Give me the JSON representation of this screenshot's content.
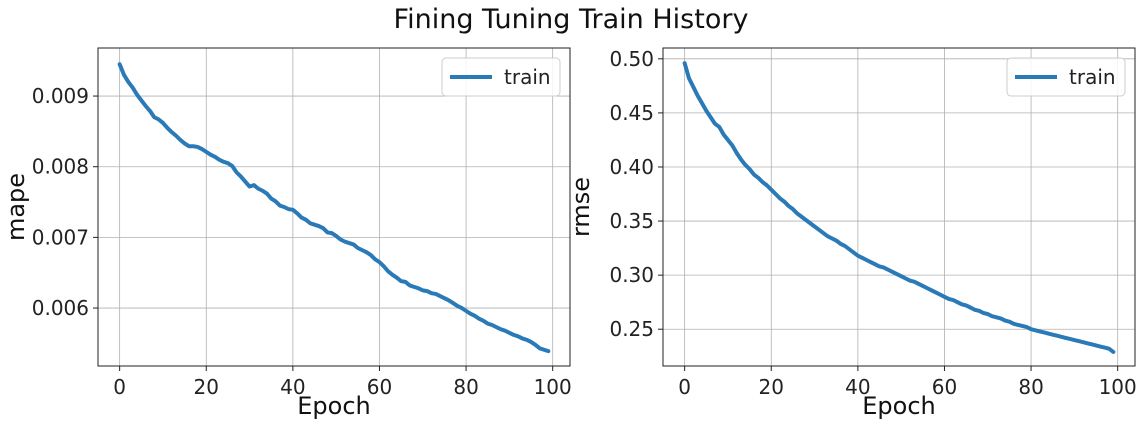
{
  "figure_title": "Fining Tuning Train History",
  "colors": {
    "line": "#2a7ab8",
    "grid": "#b0b0b0",
    "axes": "#222222"
  },
  "chart_data": [
    {
      "type": "line",
      "xlabel": "Epoch",
      "ylabel": "mape",
      "xlim": [
        -5,
        104
      ],
      "ylim": [
        0.00518,
        0.00968
      ],
      "xticks": [
        0,
        20,
        40,
        60,
        80,
        100
      ],
      "xtick_labels": [
        "0",
        "20",
        "40",
        "60",
        "80",
        "100"
      ],
      "yticks": [
        0.006,
        0.007,
        0.008,
        0.009
      ],
      "ytick_labels": [
        "0.006",
        "0.007",
        "0.008",
        "0.009"
      ],
      "grid": true,
      "legend_position": "top-right",
      "series": [
        {
          "name": "train",
          "x": [
            0,
            1,
            2,
            3,
            4,
            5,
            6,
            7,
            8,
            9,
            10,
            11,
            12,
            13,
            14,
            15,
            16,
            17,
            18,
            19,
            20,
            21,
            22,
            23,
            24,
            25,
            26,
            27,
            28,
            29,
            30,
            31,
            32,
            33,
            34,
            35,
            36,
            37,
            38,
            39,
            40,
            41,
            42,
            43,
            44,
            45,
            46,
            47,
            48,
            49,
            50,
            51,
            52,
            53,
            54,
            55,
            56,
            57,
            58,
            59,
            60,
            61,
            62,
            63,
            64,
            65,
            66,
            67,
            68,
            69,
            70,
            71,
            72,
            73,
            74,
            75,
            76,
            77,
            78,
            79,
            80,
            81,
            82,
            83,
            84,
            85,
            86,
            87,
            88,
            89,
            90,
            91,
            92,
            93,
            94,
            95,
            96,
            97,
            98,
            99
          ],
          "values": [
            0.00945,
            0.0093,
            0.0092,
            0.00912,
            0.00902,
            0.00894,
            0.00886,
            0.00879,
            0.0087,
            0.00867,
            0.00862,
            0.00855,
            0.00849,
            0.00844,
            0.00838,
            0.00833,
            0.00829,
            0.00829,
            0.00828,
            0.00825,
            0.00821,
            0.00817,
            0.00814,
            0.0081,
            0.00807,
            0.00805,
            0.00801,
            0.00792,
            0.00786,
            0.00779,
            0.00772,
            0.00774,
            0.00769,
            0.00766,
            0.00762,
            0.00755,
            0.00751,
            0.00745,
            0.00743,
            0.0074,
            0.00739,
            0.00734,
            0.00728,
            0.00725,
            0.0072,
            0.00718,
            0.00716,
            0.00713,
            0.00707,
            0.00706,
            0.00702,
            0.00697,
            0.00694,
            0.00692,
            0.0069,
            0.00685,
            0.00682,
            0.00679,
            0.00675,
            0.00669,
            0.00665,
            0.00659,
            0.00652,
            0.00647,
            0.00643,
            0.00638,
            0.00637,
            0.00632,
            0.0063,
            0.00628,
            0.00625,
            0.00624,
            0.00621,
            0.0062,
            0.00617,
            0.00614,
            0.00611,
            0.00607,
            0.00603,
            0.006,
            0.00596,
            0.00592,
            0.00589,
            0.00585,
            0.00582,
            0.00578,
            0.00576,
            0.00573,
            0.0057,
            0.00568,
            0.00565,
            0.00562,
            0.0056,
            0.00557,
            0.00555,
            0.00552,
            0.00548,
            0.00543,
            0.00541,
            0.00539
          ]
        }
      ]
    },
    {
      "type": "line",
      "xlabel": "Epoch",
      "ylabel": "rmse",
      "xlim": [
        -5,
        104
      ],
      "ylim": [
        0.216,
        0.51
      ],
      "xticks": [
        0,
        20,
        40,
        60,
        80,
        100
      ],
      "xtick_labels": [
        "0",
        "20",
        "40",
        "60",
        "80",
        "100"
      ],
      "yticks": [
        0.25,
        0.3,
        0.35,
        0.4,
        0.45,
        0.5
      ],
      "ytick_labels": [
        "0.25",
        "0.30",
        "0.35",
        "0.40",
        "0.45",
        "0.50"
      ],
      "grid": true,
      "legend_position": "top-right",
      "series": [
        {
          "name": "train",
          "x": [
            0,
            1,
            2,
            3,
            4,
            5,
            6,
            7,
            8,
            9,
            10,
            11,
            12,
            13,
            14,
            15,
            16,
            17,
            18,
            19,
            20,
            21,
            22,
            23,
            24,
            25,
            26,
            27,
            28,
            29,
            30,
            31,
            32,
            33,
            34,
            35,
            36,
            37,
            38,
            39,
            40,
            41,
            42,
            43,
            44,
            45,
            46,
            47,
            48,
            49,
            50,
            51,
            52,
            53,
            54,
            55,
            56,
            57,
            58,
            59,
            60,
            61,
            62,
            63,
            64,
            65,
            66,
            67,
            68,
            69,
            70,
            71,
            72,
            73,
            74,
            75,
            76,
            77,
            78,
            79,
            80,
            81,
            82,
            83,
            84,
            85,
            86,
            87,
            88,
            89,
            90,
            91,
            92,
            93,
            94,
            95,
            96,
            97,
            98,
            99
          ],
          "values": [
            0.496,
            0.482,
            0.474,
            0.466,
            0.459,
            0.452,
            0.446,
            0.44,
            0.437,
            0.43,
            0.425,
            0.42,
            0.413,
            0.407,
            0.402,
            0.398,
            0.393,
            0.39,
            0.386,
            0.383,
            0.379,
            0.375,
            0.371,
            0.368,
            0.364,
            0.361,
            0.357,
            0.354,
            0.351,
            0.348,
            0.345,
            0.342,
            0.339,
            0.336,
            0.334,
            0.332,
            0.329,
            0.327,
            0.324,
            0.321,
            0.318,
            0.316,
            0.314,
            0.312,
            0.31,
            0.308,
            0.307,
            0.305,
            0.303,
            0.301,
            0.299,
            0.297,
            0.295,
            0.294,
            0.292,
            0.29,
            0.288,
            0.286,
            0.284,
            0.282,
            0.28,
            0.278,
            0.277,
            0.275,
            0.273,
            0.272,
            0.27,
            0.268,
            0.267,
            0.265,
            0.264,
            0.262,
            0.261,
            0.26,
            0.258,
            0.257,
            0.255,
            0.254,
            0.253,
            0.252,
            0.25,
            0.249,
            0.248,
            0.247,
            0.246,
            0.245,
            0.244,
            0.243,
            0.242,
            0.241,
            0.24,
            0.239,
            0.238,
            0.237,
            0.236,
            0.235,
            0.234,
            0.233,
            0.232,
            0.229
          ]
        }
      ]
    }
  ]
}
